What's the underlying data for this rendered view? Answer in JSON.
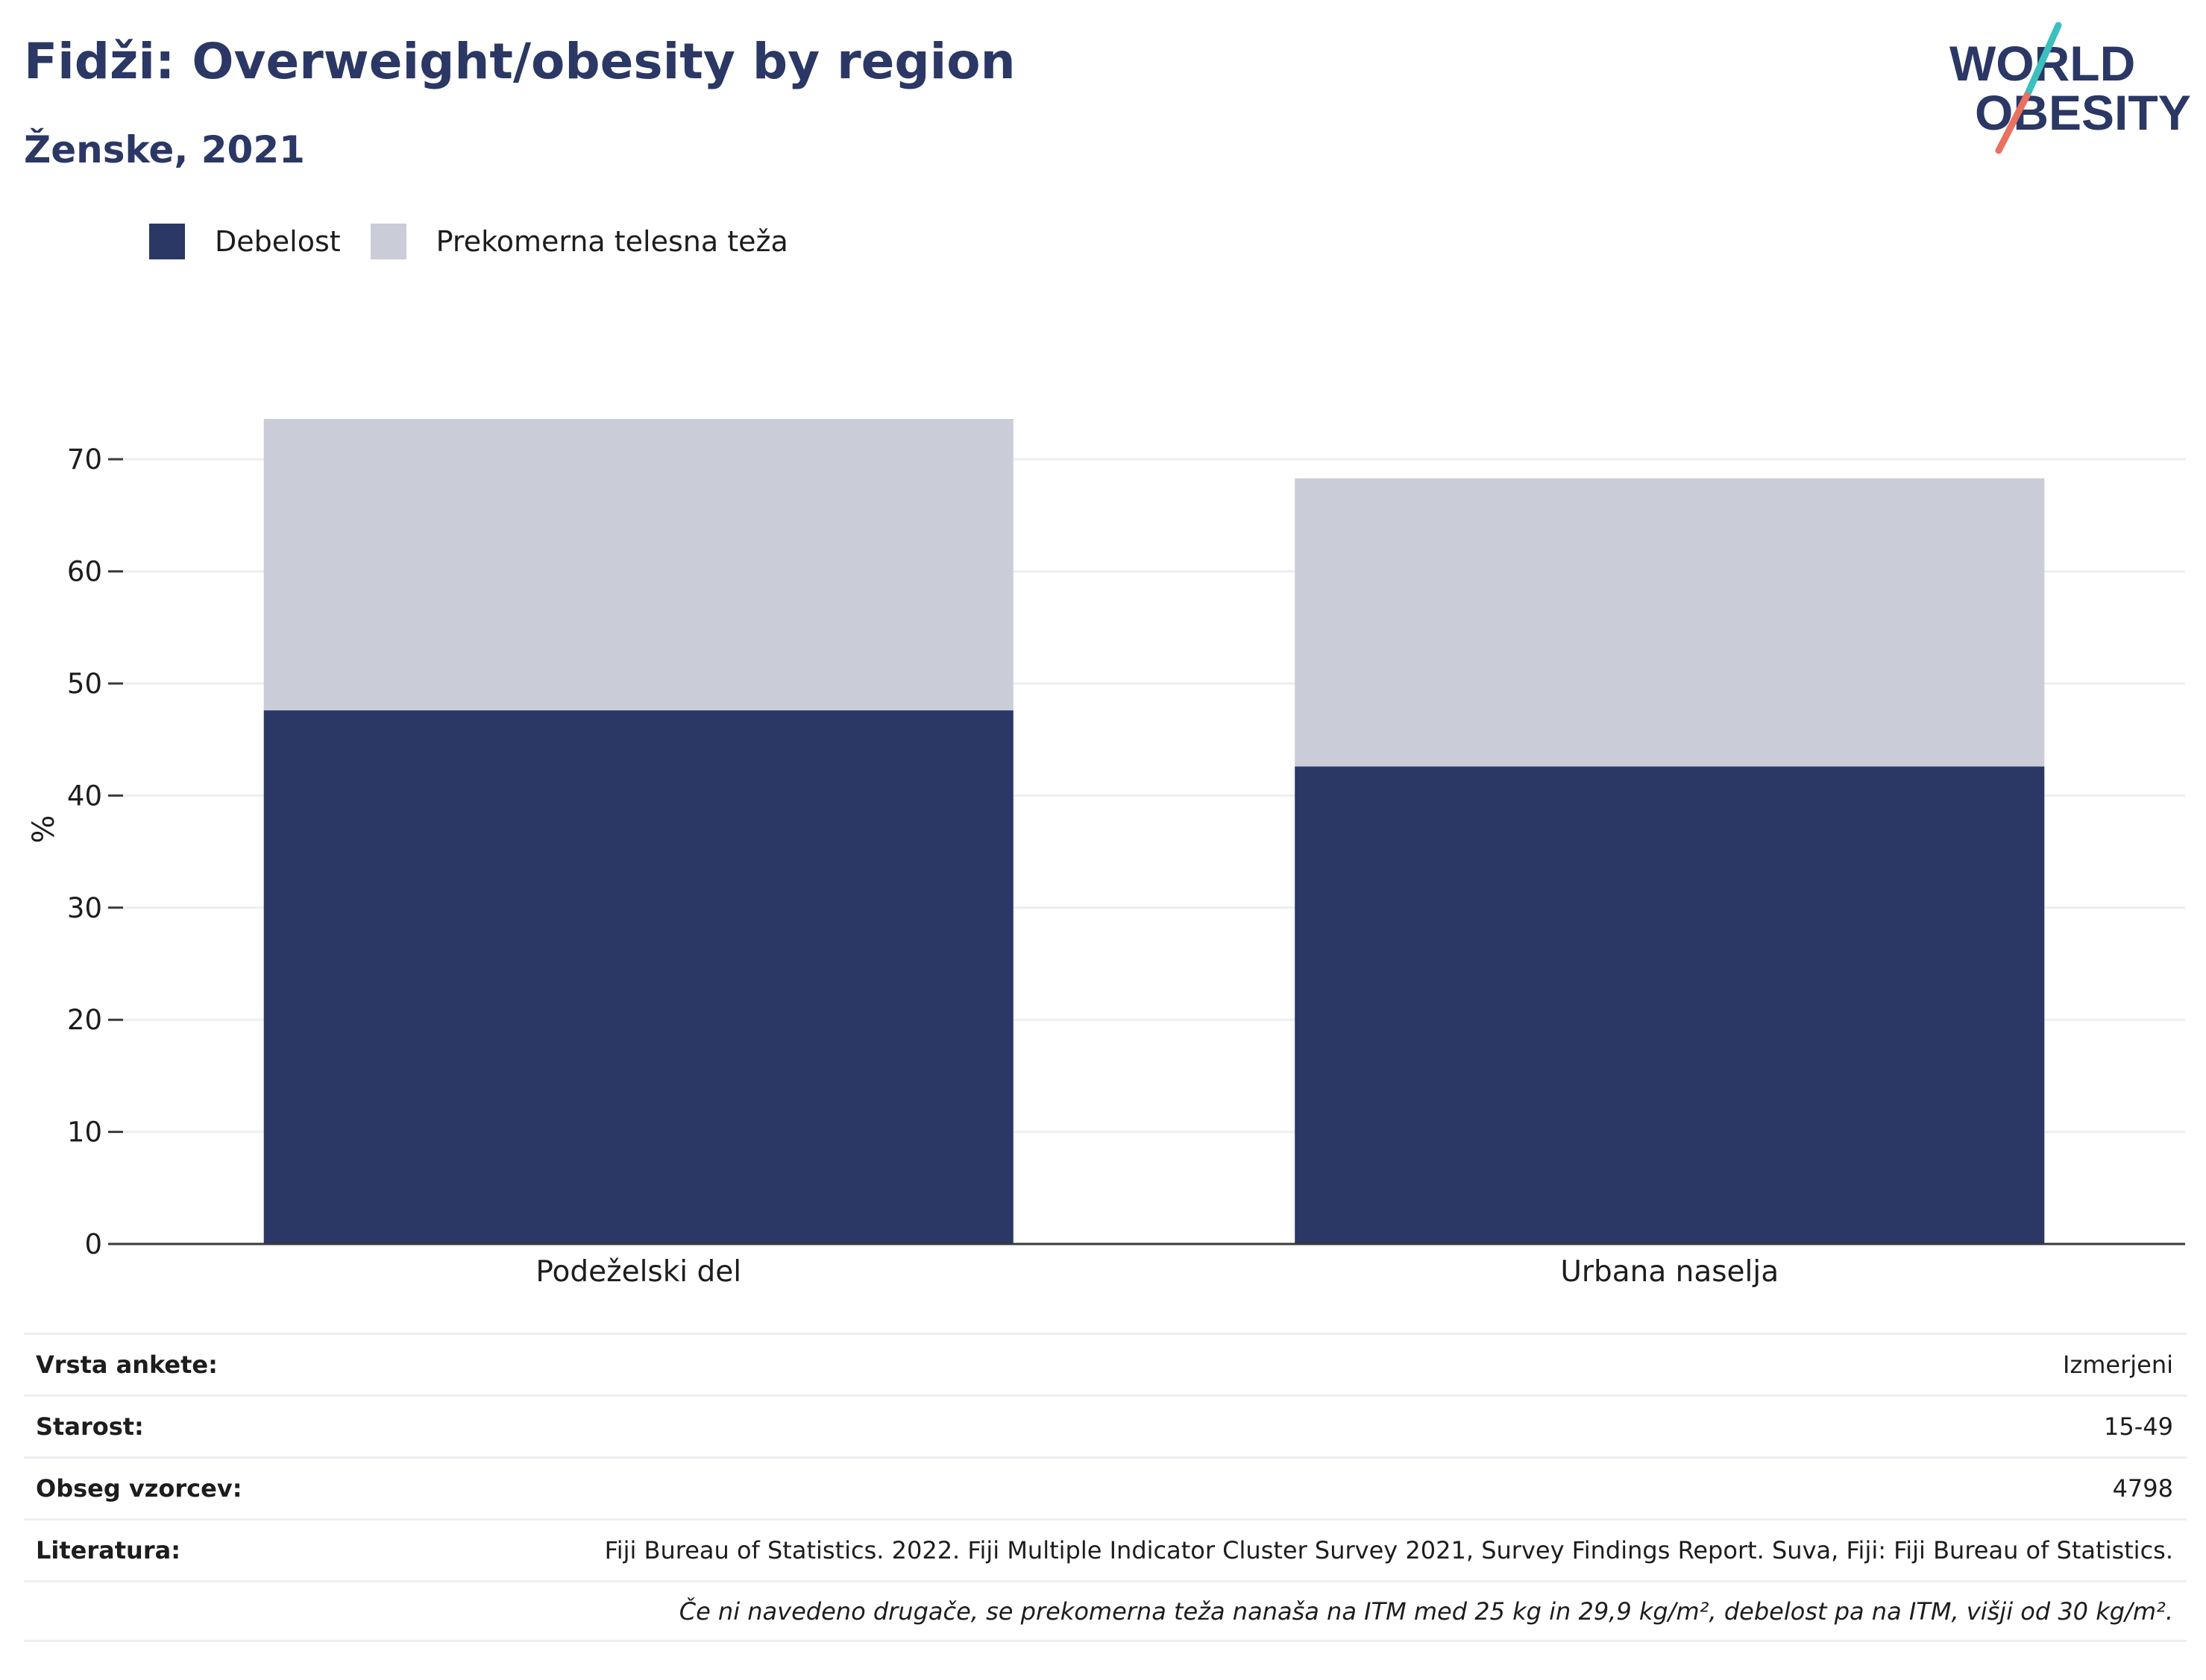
{
  "header": {
    "title": "Fidži: Overweight/obesity by region",
    "subtitle": "Ženske, 2021"
  },
  "logo": {
    "line1": "WORLD",
    "line2": "OBESITY"
  },
  "colors": {
    "obesity": "#2b3764",
    "overweight": "#cacdd8",
    "grid": "#eceef2",
    "axis": "#3a3a3a",
    "text": "#1d1d1d",
    "logo_teal": "#3bbfbf",
    "logo_coral": "#e8715f"
  },
  "legend": {
    "items": [
      {
        "label": "Debelost",
        "color": "#2b3764"
      },
      {
        "label": "Prekomerna telesna teža",
        "color": "#cacdd8"
      }
    ]
  },
  "chart_data": {
    "type": "bar",
    "stacked": true,
    "categories": [
      "Podeželski del",
      "Urbana naselja"
    ],
    "series": [
      {
        "name": "Debelost",
        "values": [
          47.6,
          42.6
        ],
        "color": "#2b3764"
      },
      {
        "name": "Prekomerna telesna teža",
        "values": [
          26.0,
          25.7
        ],
        "color": "#cacdd8"
      }
    ],
    "ylabel": "%",
    "xlabel": "",
    "ylim": [
      0,
      74
    ],
    "yticks": [
      0,
      10,
      20,
      30,
      40,
      50,
      60,
      70
    ],
    "grid": true,
    "legend_position": "top-left"
  },
  "footer": {
    "rows": [
      {
        "label": "Vrsta ankete:",
        "value": "Izmerjeni"
      },
      {
        "label": "Starost:",
        "value": "15-49"
      },
      {
        "label": "Obseg vzorcev:",
        "value": "4798"
      },
      {
        "label": "Literatura:",
        "value": "Fiji Bureau of Statistics. 2022. Fiji Multiple Indicator Cluster Survey 2021, Survey Findings Report. Suva, Fiji: Fiji Bureau of Statistics."
      }
    ],
    "note": "Če ni navedeno drugače, se prekomerna teža nanaša na ITM med 25 kg in 29,9 kg/m², debelost pa na ITM, višji od 30 kg/m²."
  }
}
